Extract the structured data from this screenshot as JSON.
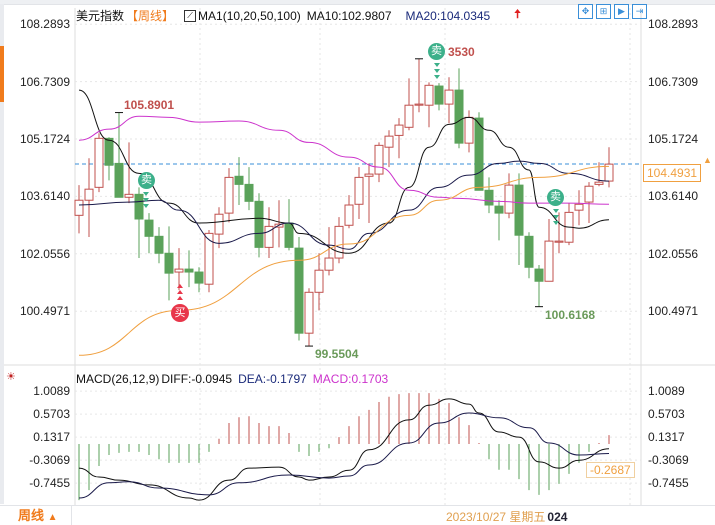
{
  "header": {
    "symbol": "美元指数",
    "period": "【周线】",
    "indicator": "MA1(10,20,50,100)",
    "ma10": "MA10:102.9807",
    "ma20": "MA20:104.0345",
    "ma10_color": "#111111",
    "ma20_color": "#1a2a7a"
  },
  "toolbar": {
    "icons": [
      "crosshair-icon",
      "zoom-in-icon",
      "play-icon",
      "exit-icon"
    ]
  },
  "price_axis": {
    "labels": [
      "108.2893",
      "106.7309",
      "105.1724",
      "103.6140",
      "102.0556",
      "100.4971"
    ],
    "values": [
      108.2893,
      106.7309,
      105.1724,
      103.614,
      102.0556,
      100.4971
    ],
    "current": "104.4931",
    "current_value": 104.4931
  },
  "annotations": {
    "high1": "105.8901",
    "high2": "3530",
    "low1": "99.5504",
    "low2": "100.6168",
    "sell": "卖",
    "buy": "买"
  },
  "colors": {
    "up": "#c0504d",
    "down": "#5aa25a",
    "ma10": "#111111",
    "ma20": "#1a1a4a",
    "ma50": "#cc33cc",
    "ma100": "#f0a040",
    "current": "#f0a040",
    "grid": "#e6e6e6",
    "dash": "#3a8fd8"
  },
  "chart_data": {
    "type": "candlestick",
    "ylim": [
      99.4,
      108.3
    ],
    "candles": [
      [
        103.1,
        103.92,
        102.61,
        103.51
      ],
      [
        103.51,
        104.65,
        102.51,
        103.81
      ],
      [
        103.86,
        105.33,
        103.73,
        105.19
      ],
      [
        105.19,
        105.22,
        104.05,
        104.46
      ],
      [
        104.51,
        105.89,
        103.59,
        103.59
      ],
      [
        103.59,
        105.08,
        103.43,
        103.67
      ],
      [
        103.67,
        103.86,
        101.94,
        103.0
      ],
      [
        102.97,
        103.16,
        102.07,
        102.53
      ],
      [
        102.53,
        102.78,
        101.8,
        102.07
      ],
      [
        102.07,
        102.8,
        100.79,
        101.53
      ],
      [
        101.56,
        102.21,
        101.07,
        101.64
      ],
      [
        101.64,
        102.15,
        101.15,
        101.56
      ],
      [
        101.56,
        101.69,
        101.01,
        101.26
      ],
      [
        101.23,
        102.7,
        101.01,
        102.61
      ],
      [
        102.59,
        103.32,
        102.21,
        103.13
      ],
      [
        103.16,
        104.38,
        102.91,
        104.13
      ],
      [
        104.16,
        104.68,
        103.38,
        103.94
      ],
      [
        103.94,
        104.41,
        103.24,
        103.48
      ],
      [
        103.48,
        103.7,
        101.96,
        102.23
      ],
      [
        102.23,
        103.32,
        101.94,
        102.8
      ],
      [
        102.78,
        103.51,
        102.23,
        102.86
      ],
      [
        102.89,
        103.54,
        102.15,
        102.23
      ],
      [
        102.21,
        102.51,
        99.7,
        99.9
      ],
      [
        99.9,
        101.12,
        99.55,
        101.01
      ],
      [
        101.01,
        102.07,
        100.52,
        101.61
      ],
      [
        101.61,
        102.78,
        101.47,
        101.94
      ],
      [
        101.94,
        103.05,
        101.8,
        102.8
      ],
      [
        102.83,
        103.65,
        102.75,
        103.38
      ],
      [
        103.4,
        104.41,
        103.0,
        104.13
      ],
      [
        104.16,
        104.51,
        102.89,
        104.22
      ],
      [
        104.22,
        105.08,
        104.0,
        105.0
      ],
      [
        104.95,
        105.41,
        104.41,
        105.25
      ],
      [
        105.27,
        105.74,
        104.65,
        105.55
      ],
      [
        105.49,
        106.82,
        105.41,
        106.09
      ],
      [
        106.09,
        107.35,
        105.9,
        106.12
      ],
      [
        106.09,
        106.71,
        105.49,
        106.63
      ],
      [
        106.61,
        106.69,
        105.95,
        106.12
      ],
      [
        106.12,
        106.85,
        105.6,
        106.5
      ],
      [
        106.5,
        107.09,
        104.92,
        105.06
      ],
      [
        105.06,
        105.95,
        104.81,
        105.76
      ],
      [
        105.74,
        105.9,
        103.78,
        103.78
      ],
      [
        103.78,
        104.13,
        103.16,
        103.38
      ],
      [
        103.35,
        103.51,
        102.42,
        103.16
      ],
      [
        103.16,
        104.24,
        103.02,
        103.92
      ],
      [
        103.92,
        104.24,
        101.75,
        102.56
      ],
      [
        102.53,
        102.64,
        101.39,
        101.69
      ],
      [
        101.64,
        101.75,
        100.62,
        101.31
      ],
      [
        101.31,
        103.0,
        101.31,
        102.4
      ],
      [
        102.37,
        103.18,
        102.07,
        102.4
      ],
      [
        102.37,
        103.43,
        102.29,
        103.18
      ],
      [
        103.24,
        103.78,
        102.83,
        103.4
      ],
      [
        103.46,
        104.0,
        102.89,
        103.89
      ],
      [
        103.94,
        104.54,
        103.89,
        104.0
      ],
      [
        104.03,
        104.95,
        103.86,
        104.49
      ]
    ],
    "ma": [
      {
        "name": "MA10",
        "color": "#111111",
        "points": [
          [
            0,
            106.5
          ],
          [
            3,
            105.14
          ],
          [
            6,
            104.24
          ],
          [
            9,
            103.43
          ],
          [
            12,
            102.89
          ],
          [
            18,
            103.02
          ],
          [
            21,
            102.89
          ],
          [
            22,
            102.61
          ],
          [
            27,
            102.07
          ],
          [
            31,
            102.89
          ],
          [
            33,
            103.86
          ],
          [
            35,
            104.95
          ],
          [
            37,
            105.57
          ],
          [
            39,
            105.76
          ],
          [
            41,
            105.41
          ],
          [
            43,
            104.95
          ],
          [
            45,
            104.33
          ],
          [
            46,
            103.32
          ],
          [
            49,
            102.78
          ],
          [
            50,
            102.75
          ],
          [
            53,
            102.98
          ]
        ]
      },
      {
        "name": "MA20",
        "color": "#1a1a4a",
        "points": [
          [
            0,
            103.38
          ],
          [
            5,
            103.46
          ],
          [
            8,
            103.51
          ],
          [
            10,
            103.24
          ],
          [
            14,
            102.34
          ],
          [
            18,
            102.61
          ],
          [
            21,
            102.89
          ],
          [
            25,
            102.29
          ],
          [
            27,
            102.18
          ],
          [
            29,
            102.61
          ],
          [
            33,
            103.24
          ],
          [
            36,
            103.86
          ],
          [
            39,
            104.19
          ],
          [
            42,
            104.51
          ],
          [
            44,
            104.57
          ],
          [
            46,
            104.51
          ],
          [
            49,
            104.24
          ],
          [
            53,
            104.03
          ]
        ]
      },
      {
        "name": "MA50",
        "color": "#cc33cc",
        "points": [
          [
            0,
            105.14
          ],
          [
            3,
            105.44
          ],
          [
            6,
            105.79
          ],
          [
            9,
            105.76
          ],
          [
            12,
            105.63
          ],
          [
            16,
            105.66
          ],
          [
            20,
            105.41
          ],
          [
            23,
            105.08
          ],
          [
            27,
            104.68
          ],
          [
            30,
            104.41
          ],
          [
            33,
            103.78
          ],
          [
            36,
            103.59
          ],
          [
            38,
            103.56
          ],
          [
            42,
            103.48
          ],
          [
            45,
            103.43
          ],
          [
            49,
            103.43
          ],
          [
            53,
            103.4
          ]
        ]
      },
      {
        "name": "MA100",
        "color": "#f0a040",
        "points": [
          [
            0,
            99.3
          ],
          [
            10,
            100.52
          ],
          [
            22,
            101.88
          ],
          [
            27,
            102.32
          ],
          [
            33,
            103.1
          ],
          [
            36,
            103.51
          ],
          [
            40,
            103.86
          ],
          [
            46,
            104.13
          ],
          [
            53,
            104.43
          ]
        ]
      }
    ],
    "macd": {
      "title": "MACD(26,12,9)",
      "diff_label": "DIFF:-0.0945",
      "dea_label": "DEA:-0.1797",
      "macd_label": "MACD:0.1703",
      "axis_labels": [
        "1.0089",
        "0.5703",
        "0.1317",
        "-0.3069",
        "-0.7455"
      ],
      "axis_values": [
        1.0089,
        0.5703,
        0.1317,
        -0.3069,
        -0.7455
      ],
      "current": "-0.2687",
      "current_value": -0.2687,
      "bars": [
        -1.07,
        -0.88,
        -0.42,
        -0.21,
        -0.17,
        -0.15,
        -0.15,
        -0.21,
        -0.29,
        -0.36,
        -0.36,
        -0.36,
        -0.36,
        -0.15,
        0.1,
        0.4,
        0.51,
        0.53,
        0.4,
        0.34,
        0.34,
        0.21,
        -0.15,
        -0.23,
        -0.15,
        -0.08,
        0.13,
        0.34,
        0.53,
        0.65,
        0.8,
        0.9,
        0.95,
        0.97,
        0.97,
        0.97,
        0.86,
        0.78,
        0.51,
        0.36,
        0.02,
        -0.29,
        -0.49,
        -0.49,
        -0.67,
        -0.88,
        -0.97,
        -0.88,
        -0.76,
        -0.57,
        -0.36,
        -0.15,
        0.02,
        0.17
      ],
      "diff": [
        [
          0,
          -0.46
        ],
        [
          2,
          -0.63
        ],
        [
          4,
          -0.69
        ],
        [
          7,
          -0.78
        ],
        [
          11,
          -1.03
        ],
        [
          12,
          -1.07
        ],
        [
          15,
          -0.69
        ],
        [
          17,
          -0.46
        ],
        [
          20,
          -0.44
        ],
        [
          22,
          -0.63
        ],
        [
          23,
          -0.69
        ],
        [
          25,
          -0.63
        ],
        [
          27,
          -0.5
        ],
        [
          29,
          -0.11
        ],
        [
          33,
          0.46
        ],
        [
          35,
          0.74
        ],
        [
          37,
          0.86
        ],
        [
          39,
          0.76
        ],
        [
          40,
          0.59
        ],
        [
          42,
          0.23
        ],
        [
          44,
          0.13
        ],
        [
          46,
          -0.34
        ],
        [
          48,
          -0.46
        ],
        [
          50,
          -0.31
        ],
        [
          53,
          -0.09
        ]
      ],
      "dea": [
        [
          0,
          -1.03
        ],
        [
          3,
          -0.74
        ],
        [
          5,
          -0.72
        ],
        [
          8,
          -0.84
        ],
        [
          13,
          -0.97
        ],
        [
          16,
          -0.74
        ],
        [
          21,
          -0.59
        ],
        [
          25,
          -0.65
        ],
        [
          27,
          -0.61
        ],
        [
          29,
          -0.4
        ],
        [
          33,
          0.02
        ],
        [
          36,
          0.4
        ],
        [
          39,
          0.59
        ],
        [
          42,
          0.5
        ],
        [
          45,
          0.31
        ],
        [
          47,
          0.02
        ],
        [
          50,
          -0.21
        ],
        [
          53,
          -0.18
        ]
      ]
    }
  },
  "footer": {
    "period_tab": "周线",
    "tab_arrow": "▲",
    "date": "2023/10/27 星期五",
    "date_suffix": "024"
  }
}
